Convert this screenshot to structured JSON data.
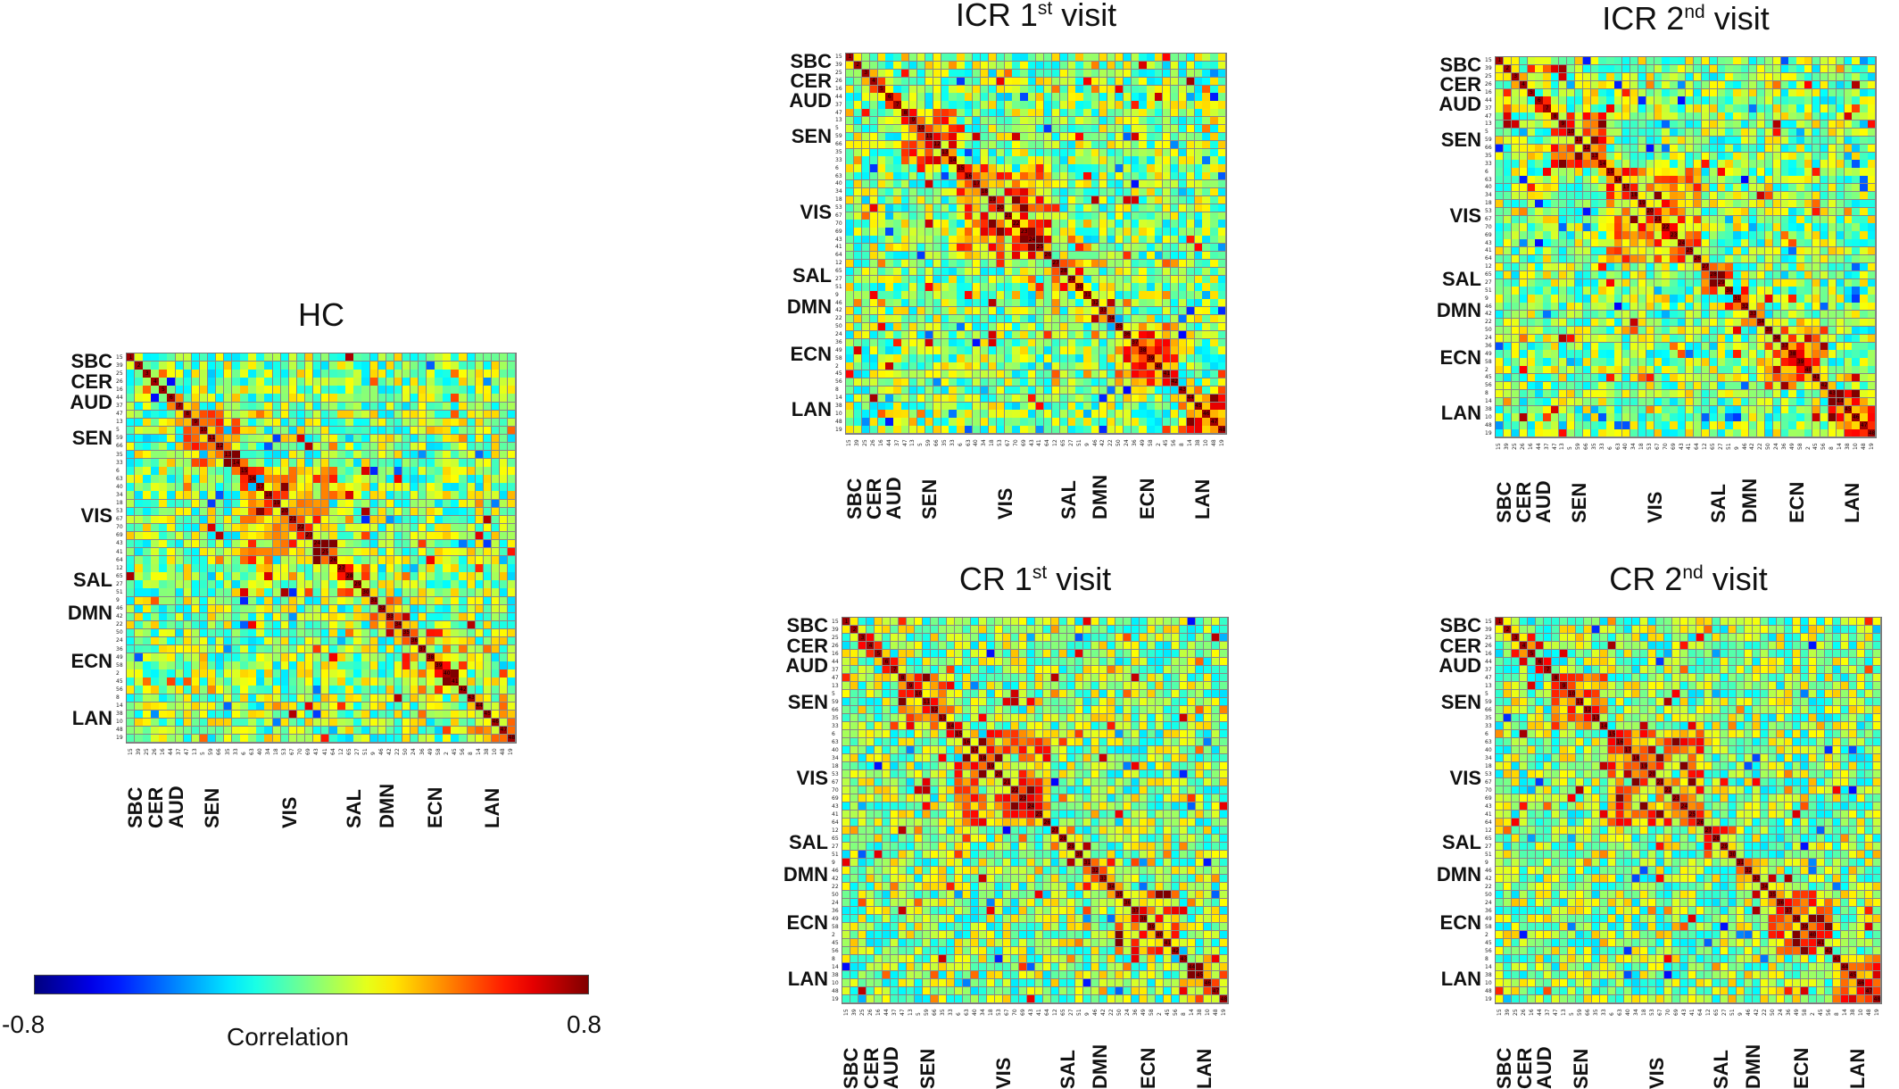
{
  "chart_data": {
    "type": "heatmap",
    "matrix_size": 48,
    "axis_order": [
      15,
      39,
      25,
      26,
      16,
      44,
      37,
      47,
      13,
      5,
      59,
      66,
      35,
      33,
      6,
      63,
      40,
      34,
      18,
      53,
      67,
      70,
      69,
      43,
      41,
      64,
      12,
      65,
      27,
      51,
      9,
      46,
      42,
      22,
      50,
      24,
      36,
      49,
      58,
      2,
      45,
      56,
      8,
      14,
      38,
      10,
      48,
      19
    ],
    "networks": [
      {
        "name": "SBC",
        "start": 0,
        "count": 2
      },
      {
        "name": "CER",
        "start": 2,
        "count": 3
      },
      {
        "name": "AUD",
        "start": 5,
        "count": 2
      },
      {
        "name": "SEN",
        "start": 7,
        "count": 7
      },
      {
        "name": "VIS",
        "start": 14,
        "count": 12
      },
      {
        "name": "SAL",
        "start": 26,
        "count": 4
      },
      {
        "name": "DMN",
        "start": 30,
        "count": 4
      },
      {
        "name": "ECN",
        "start": 34,
        "count": 8
      },
      {
        "name": "LAN",
        "start": 42,
        "count": 6
      }
    ],
    "panels": [
      {
        "id": "hc",
        "title_main": "HC",
        "title_sup": "",
        "title_rest": "",
        "within": 0.25,
        "seed": 11
      },
      {
        "id": "icr1",
        "title_main": "ICR 1",
        "title_sup": "st",
        "title_rest": " visit",
        "within": 0.32,
        "seed": 23
      },
      {
        "id": "icr2",
        "title_main": "ICR 2",
        "title_sup": "nd",
        "title_rest": " visit",
        "within": 0.3,
        "seed": 37
      },
      {
        "id": "cr1",
        "title_main": "CR 1",
        "title_sup": "st",
        "title_rest": " visit",
        "within": 0.31,
        "seed": 41
      },
      {
        "id": "cr2",
        "title_main": "CR 2",
        "title_sup": "nd",
        "title_rest": " visit",
        "within": 0.29,
        "seed": 53
      }
    ],
    "colorbar": {
      "min_label": "-0.8",
      "max_label": "0.8",
      "title": "Correlation",
      "vmin": -0.8,
      "vmax": 0.8,
      "colormap": "jet"
    }
  }
}
